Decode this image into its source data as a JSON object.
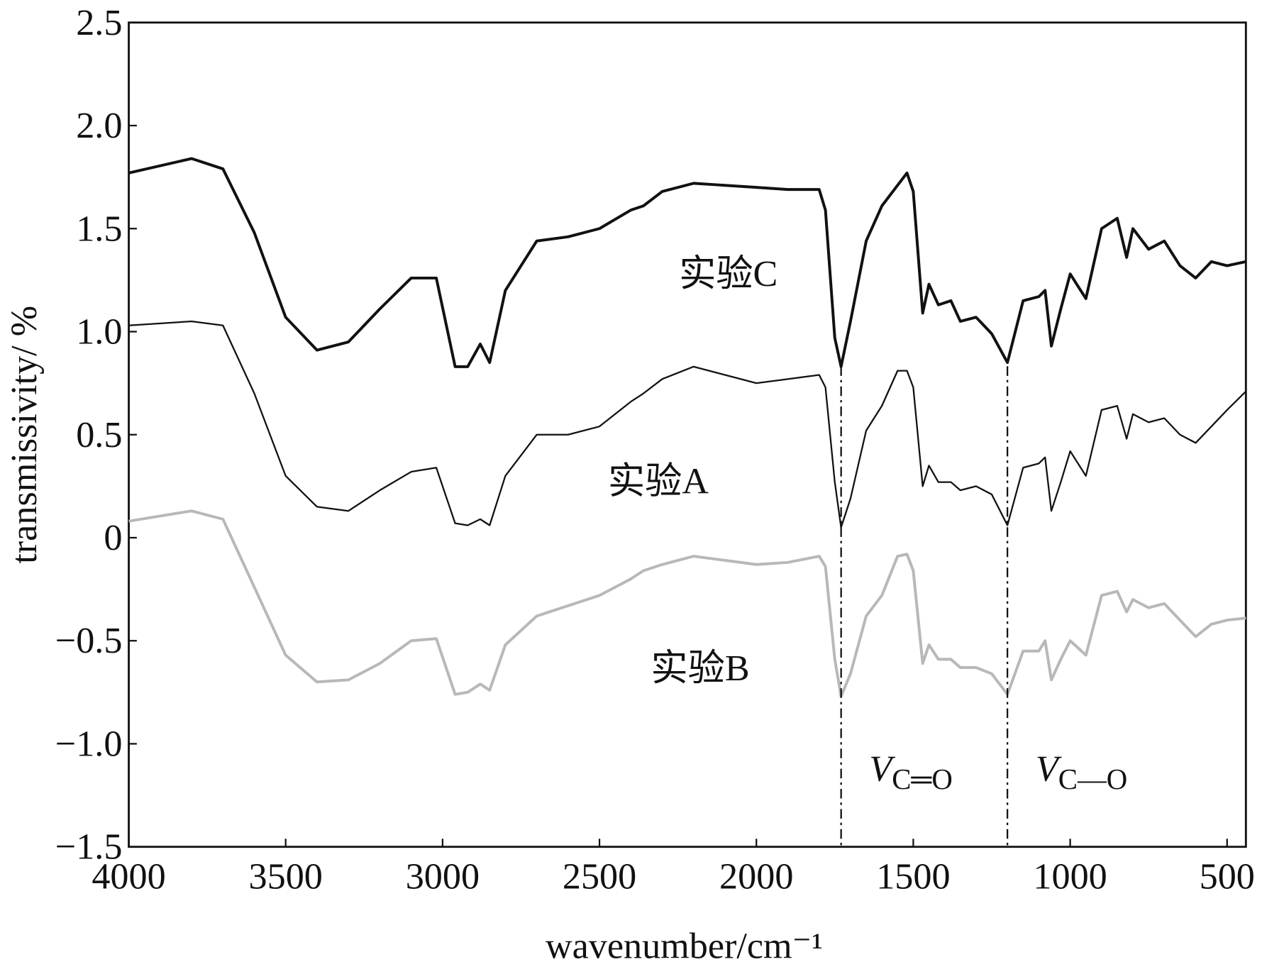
{
  "chart_data": {
    "type": "line",
    "x_label": "wavenumber/cm⁻¹",
    "y_label": "transmissivity/ %",
    "xlim": [
      4000,
      440
    ],
    "ylim": [
      -1.5,
      2.5
    ],
    "xticks": [
      4000,
      3500,
      3000,
      2500,
      2000,
      1500,
      1000,
      500
    ],
    "yticks": [
      {
        "value": 2.5,
        "label": "2.5"
      },
      {
        "value": 2.0,
        "label": "2.0"
      },
      {
        "value": 1.5,
        "label": "1.5"
      },
      {
        "value": 1.0,
        "label": "1.0"
      },
      {
        "value": 0.5,
        "label": "0.5"
      },
      0,
      {
        "value": -0.5,
        "label": "−0.5"
      },
      {
        "value": -1.0,
        "label": "−1.0"
      },
      {
        "value": -1.5,
        "label": "−1.5"
      }
    ],
    "x": [
      4000,
      3800,
      3700,
      3600,
      3500,
      3400,
      3300,
      3200,
      3100,
      3020,
      2960,
      2920,
      2880,
      2850,
      2800,
      2700,
      2600,
      2500,
      2400,
      2360,
      2300,
      2200,
      2000,
      1900,
      1800,
      1780,
      1750,
      1730,
      1700,
      1650,
      1600,
      1550,
      1520,
      1500,
      1470,
      1450,
      1420,
      1380,
      1350,
      1300,
      1250,
      1200,
      1150,
      1100,
      1080,
      1060,
      1030,
      1000,
      950,
      900,
      850,
      820,
      800,
      750,
      700,
      650,
      600,
      550,
      500,
      440
    ],
    "series": [
      {
        "name": "实验C",
        "color": "#111111",
        "values": [
          1.77,
          1.84,
          1.79,
          1.48,
          1.07,
          0.91,
          0.95,
          1.11,
          1.26,
          1.26,
          0.83,
          0.83,
          0.94,
          0.85,
          1.2,
          1.44,
          1.46,
          1.5,
          1.59,
          1.61,
          1.68,
          1.72,
          1.7,
          1.69,
          1.69,
          1.59,
          0.97,
          0.83,
          1.05,
          1.44,
          1.61,
          1.71,
          1.77,
          1.68,
          1.09,
          1.23,
          1.13,
          1.15,
          1.05,
          1.07,
          0.99,
          0.85,
          1.15,
          1.17,
          1.2,
          0.93,
          1.11,
          1.28,
          1.16,
          1.5,
          1.55,
          1.36,
          1.5,
          1.4,
          1.44,
          1.32,
          1.26,
          1.34,
          1.32,
          1.34
        ]
      },
      {
        "name": "实验A",
        "color": "#111111",
        "values": [
          1.03,
          1.05,
          1.03,
          0.7,
          0.3,
          0.15,
          0.13,
          0.23,
          0.32,
          0.34,
          0.07,
          0.06,
          0.09,
          0.06,
          0.3,
          0.5,
          0.5,
          0.54,
          0.66,
          0.7,
          0.77,
          0.83,
          0.75,
          0.77,
          0.79,
          0.73,
          0.27,
          0.05,
          0.19,
          0.52,
          0.64,
          0.81,
          0.81,
          0.73,
          0.25,
          0.35,
          0.27,
          0.27,
          0.23,
          0.25,
          0.21,
          0.06,
          0.34,
          0.36,
          0.39,
          0.13,
          0.27,
          0.42,
          0.3,
          0.62,
          0.64,
          0.48,
          0.6,
          0.56,
          0.58,
          0.5,
          0.46,
          0.54,
          0.62,
          0.71
        ]
      },
      {
        "name": "实验B",
        "color": "#b8b8b8",
        "values": [
          0.08,
          0.13,
          0.09,
          -0.24,
          -0.57,
          -0.7,
          -0.69,
          -0.61,
          -0.5,
          -0.49,
          -0.76,
          -0.75,
          -0.71,
          -0.74,
          -0.52,
          -0.38,
          -0.33,
          -0.28,
          -0.2,
          -0.16,
          -0.13,
          -0.09,
          -0.13,
          -0.12,
          -0.09,
          -0.14,
          -0.59,
          -0.77,
          -0.66,
          -0.38,
          -0.28,
          -0.09,
          -0.08,
          -0.16,
          -0.61,
          -0.52,
          -0.59,
          -0.59,
          -0.63,
          -0.63,
          -0.66,
          -0.76,
          -0.55,
          -0.55,
          -0.5,
          -0.69,
          -0.59,
          -0.5,
          -0.57,
          -0.28,
          -0.26,
          -0.36,
          -0.3,
          -0.34,
          -0.32,
          -0.4,
          -0.48,
          -0.42,
          -0.4,
          -0.39
        ]
      }
    ],
    "reference_lines": [
      {
        "x": 1730,
        "symbol": "V",
        "subscript": "C═O"
      },
      {
        "x": 1200,
        "symbol": "V",
        "subscript": "C—O"
      }
    ]
  }
}
